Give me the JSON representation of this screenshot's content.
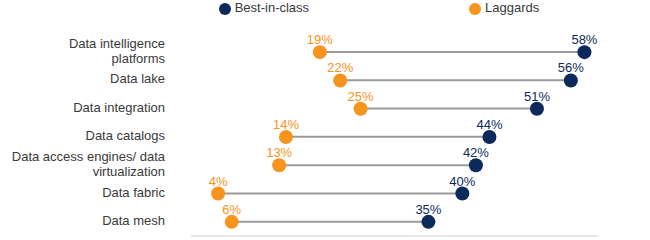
{
  "chart_data": {
    "type": "dumbbell",
    "orientation": "horizontal",
    "categories": [
      "Data intelligence platforms",
      "Data lake",
      "Data integration",
      "Data catalogs",
      "Data access engines/ data virtualization",
      "Data fabric",
      "Data mesh"
    ],
    "series": [
      {
        "name": "Laggards",
        "color": "#f7941d",
        "marker": "circle",
        "values": [
          19,
          22,
          25,
          14,
          13,
          4,
          6
        ],
        "value_labels": [
          "19%",
          "22%",
          "25%",
          "14%",
          "13%",
          "4%",
          "6%"
        ]
      },
      {
        "name": "Best-in-class",
        "color": "#0b2a5b",
        "marker": "circle",
        "values": [
          58,
          56,
          51,
          44,
          42,
          40,
          35
        ],
        "value_labels": [
          "58%",
          "56%",
          "51%",
          "44%",
          "42%",
          "40%",
          "35%"
        ]
      }
    ],
    "xlim": [
      0,
      60
    ],
    "data_labels": true,
    "tick_labels": "y",
    "legend": "top",
    "grid": false
  }
}
